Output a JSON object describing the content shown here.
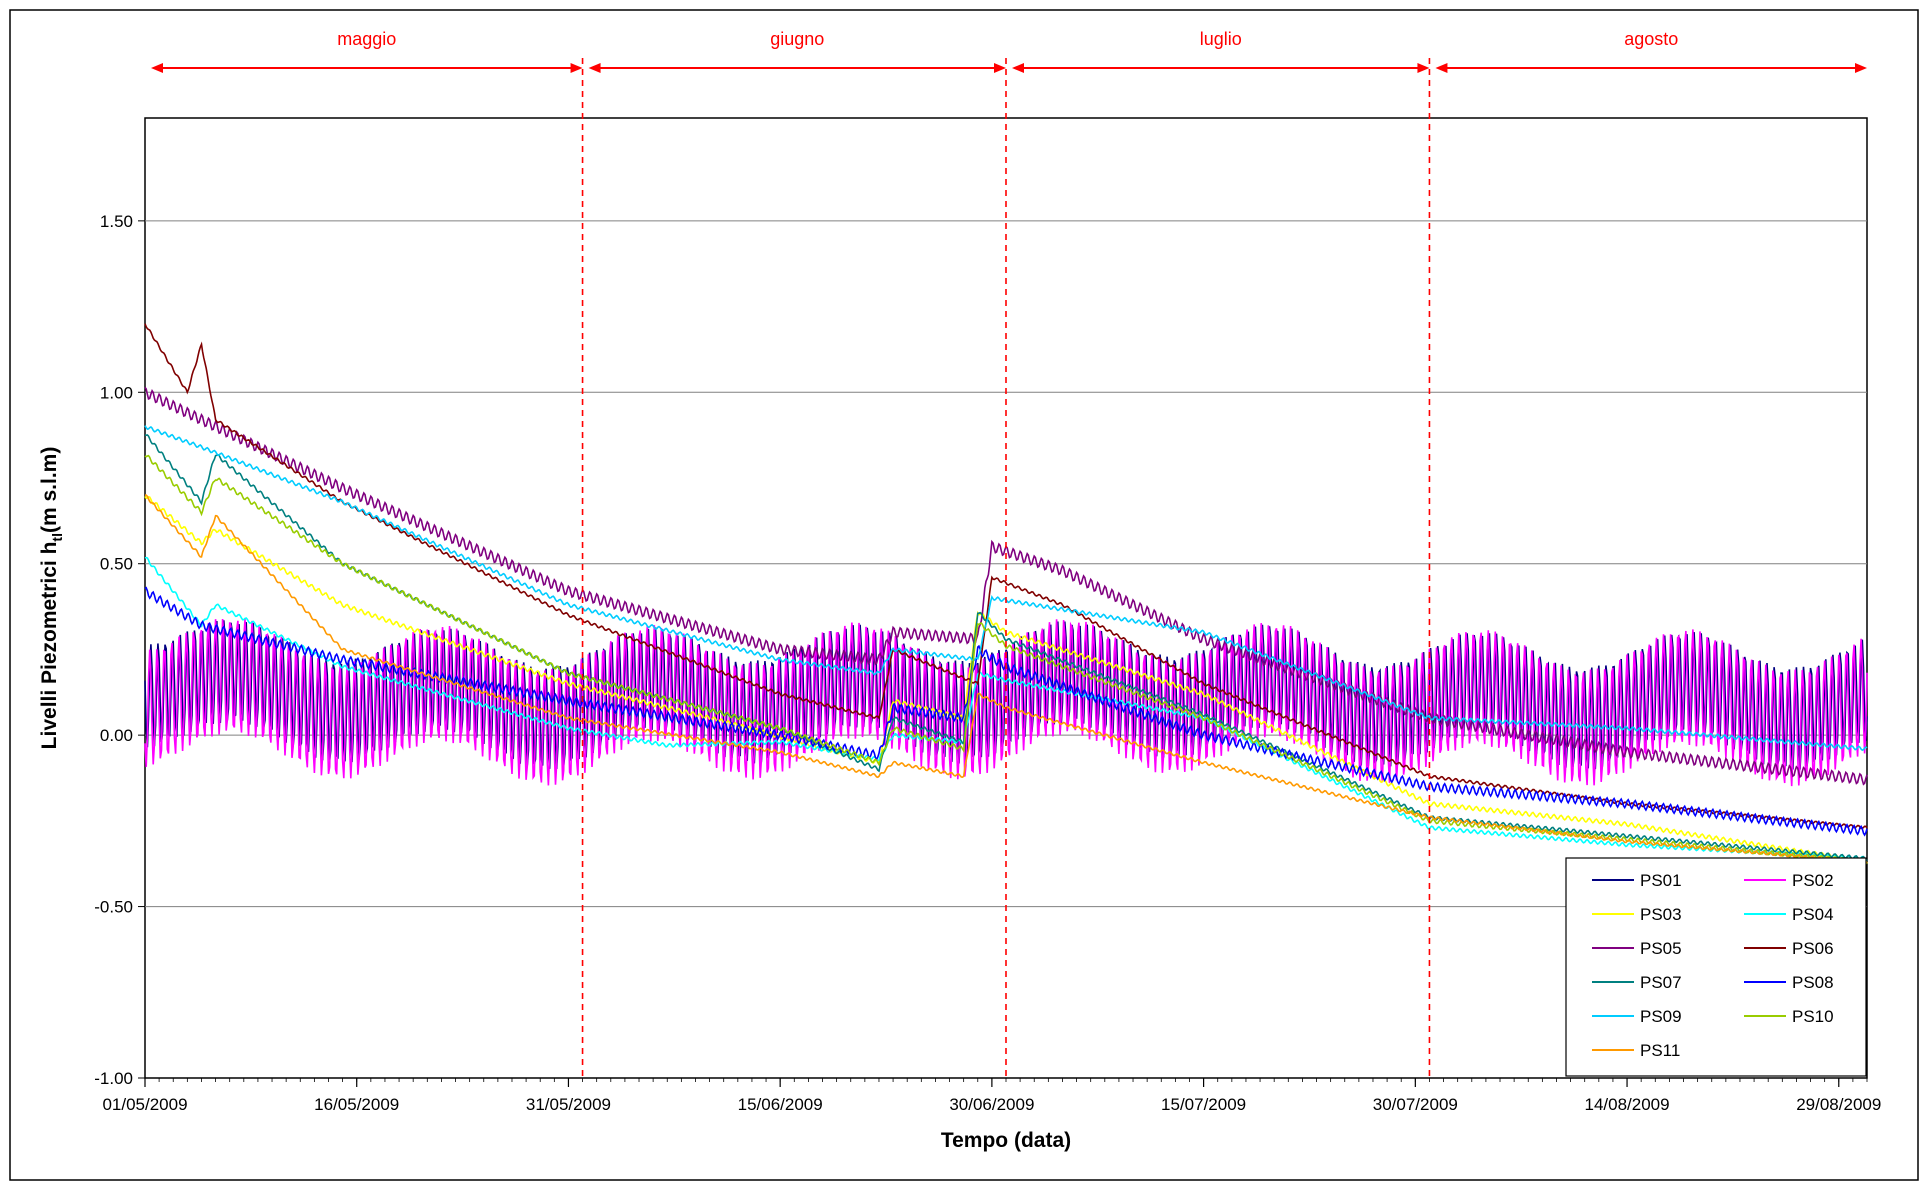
{
  "chart_data": {
    "type": "line",
    "title": "",
    "xlabel": "Tempo (data)",
    "ylabel": "Livelli Piezometrici h tl (m s.l.m)",
    "ylabel_main": "Livelli Piezometrici h",
    "ylabel_sub": "tl",
    "ylabel_unit": "(m s.l.m)",
    "x_start": "01/05/2009",
    "x_end": "31/08/2009",
    "ylim": [
      -1.0,
      1.8
    ],
    "y_ticks": [
      -1.0,
      -0.5,
      0.0,
      0.5,
      1.0,
      1.5
    ],
    "y_tick_labels": [
      "-1.00",
      "-0.50",
      "0.00",
      "0.50",
      "1.00",
      "1.50"
    ],
    "x_ticks": [
      "01/05/2009",
      "16/05/2009",
      "31/05/2009",
      "15/06/2009",
      "30/06/2009",
      "15/07/2009",
      "30/07/2009",
      "14/08/2009",
      "29/08/2009"
    ],
    "grid": "horizontal",
    "legend_position": "bottom-right",
    "months": [
      {
        "label": "maggio",
        "start": "01/05/2009",
        "end": "01/06/2009"
      },
      {
        "label": "giugno",
        "start": "01/06/2009",
        "end": "01/07/2009"
      },
      {
        "label": "luglio",
        "start": "01/07/2009",
        "end": "31/07/2009"
      },
      {
        "label": "agosto",
        "start": "31/07/2009",
        "end": "31/08/2009"
      }
    ],
    "month_boundaries": [
      "01/06/2009",
      "01/07/2009",
      "31/07/2009"
    ],
    "annotation_color": "#ff0000",
    "series": [
      {
        "name": "PS01",
        "color": "#000080",
        "oscillation": 0.15,
        "x": [
          "01/05/2009",
          "05/05/2009",
          "15/05/2009",
          "31/05/2009",
          "10/06/2009",
          "22/06/2009",
          "29/06/2009",
          "10/07/2009",
          "20/07/2009",
          "31/07/2009",
          "14/08/2009",
          "31/08/2009"
        ],
        "y": [
          0.16,
          0.14,
          0.12,
          0.1,
          0.12,
          0.12,
          0.12,
          0.14,
          0.12,
          0.1,
          0.1,
          0.1
        ]
      },
      {
        "name": "PS02",
        "color": "#ff00ff",
        "oscillation": 0.17,
        "x": [
          "01/05/2009",
          "05/05/2009",
          "15/05/2009",
          "31/05/2009",
          "10/06/2009",
          "22/06/2009",
          "29/06/2009",
          "10/07/2009",
          "20/07/2009",
          "31/07/2009",
          "14/08/2009",
          "31/08/2009"
        ],
        "y": [
          0.13,
          0.12,
          0.1,
          0.08,
          0.1,
          0.1,
          0.1,
          0.12,
          0.1,
          0.08,
          0.08,
          0.08
        ]
      },
      {
        "name": "PS03",
        "color": "#ffff00",
        "oscillation": 0.006,
        "x": [
          "01/05/2009",
          "05/05/2009",
          "06/05/2009",
          "15/05/2009",
          "31/05/2009",
          "10/06/2009",
          "22/06/2009",
          "23/06/2009",
          "28/06/2009",
          "29/06/2009",
          "01/07/2009",
          "15/07/2009",
          "31/07/2009",
          "14/08/2009",
          "31/08/2009"
        ],
        "y": [
          0.7,
          0.56,
          0.6,
          0.38,
          0.15,
          0.05,
          -0.08,
          0.1,
          0.05,
          0.36,
          0.3,
          0.12,
          -0.2,
          -0.26,
          -0.37
        ]
      },
      {
        "name": "PS04",
        "color": "#00ffff",
        "oscillation": 0.005,
        "x": [
          "01/05/2009",
          "05/05/2009",
          "06/05/2009",
          "15/05/2009",
          "31/05/2009",
          "07/06/2009",
          "15/06/2009",
          "22/06/2009",
          "23/06/2009",
          "28/06/2009",
          "29/06/2009",
          "01/07/2009",
          "15/07/2009",
          "31/07/2009",
          "14/08/2009",
          "31/08/2009"
        ],
        "y": [
          0.52,
          0.32,
          0.38,
          0.2,
          0.02,
          -0.03,
          -0.02,
          -0.07,
          0.0,
          -0.02,
          0.18,
          0.16,
          0.05,
          -0.27,
          -0.32,
          -0.36
        ]
      },
      {
        "name": "PS05",
        "color": "#800080",
        "oscillation": 0.015,
        "x": [
          "01/05/2009",
          "05/05/2009",
          "15/05/2009",
          "31/05/2009",
          "15/06/2009",
          "22/06/2009",
          "23/06/2009",
          "29/06/2009",
          "30/06/2009",
          "05/07/2009",
          "15/07/2009",
          "31/07/2009",
          "14/08/2009",
          "31/08/2009"
        ],
        "y": [
          1.0,
          0.92,
          0.72,
          0.42,
          0.25,
          0.22,
          0.3,
          0.28,
          0.55,
          0.48,
          0.28,
          0.05,
          -0.05,
          -0.13
        ]
      },
      {
        "name": "PS06",
        "color": "#800000",
        "oscillation": 0.004,
        "x": [
          "01/05/2009",
          "04/05/2009",
          "05/05/2009",
          "06/05/2009",
          "15/05/2009",
          "31/05/2009",
          "15/06/2009",
          "22/06/2009",
          "23/06/2009",
          "29/06/2009",
          "30/06/2009",
          "05/07/2009",
          "15/07/2009",
          "31/07/2009",
          "14/08/2009",
          "31/08/2009"
        ],
        "y": [
          1.2,
          1.0,
          1.14,
          0.92,
          0.68,
          0.35,
          0.12,
          0.05,
          0.25,
          0.15,
          0.46,
          0.38,
          0.15,
          -0.12,
          -0.2,
          -0.27
        ]
      },
      {
        "name": "PS07",
        "color": "#008080",
        "oscillation": 0.005,
        "x": [
          "01/05/2009",
          "05/05/2009",
          "06/05/2009",
          "15/05/2009",
          "31/05/2009",
          "15/06/2009",
          "22/06/2009",
          "23/06/2009",
          "28/06/2009",
          "29/06/2009",
          "01/07/2009",
          "15/07/2009",
          "31/07/2009",
          "31/08/2009"
        ],
        "y": [
          0.88,
          0.68,
          0.82,
          0.5,
          0.18,
          0.02,
          -0.1,
          0.05,
          -0.02,
          0.36,
          0.28,
          0.06,
          -0.24,
          -0.36
        ]
      },
      {
        "name": "PS08",
        "color": "#0000ff",
        "oscillation": 0.012,
        "x": [
          "01/05/2009",
          "05/05/2009",
          "15/05/2009",
          "31/05/2009",
          "15/06/2009",
          "22/06/2009",
          "23/06/2009",
          "28/06/2009",
          "29/06/2009",
          "01/07/2009",
          "15/07/2009",
          "31/07/2009",
          "14/08/2009",
          "31/08/2009"
        ],
        "y": [
          0.42,
          0.32,
          0.22,
          0.1,
          0.0,
          -0.06,
          0.08,
          0.05,
          0.25,
          0.2,
          0.0,
          -0.15,
          -0.2,
          -0.28
        ]
      },
      {
        "name": "PS09",
        "color": "#00ccff",
        "oscillation": 0.005,
        "x": [
          "01/05/2009",
          "05/05/2009",
          "15/05/2009",
          "31/05/2009",
          "15/06/2009",
          "22/06/2009",
          "23/06/2009",
          "29/06/2009",
          "30/06/2009",
          "15/07/2009",
          "31/07/2009",
          "14/08/2009",
          "31/08/2009"
        ],
        "y": [
          0.9,
          0.84,
          0.68,
          0.38,
          0.22,
          0.18,
          0.25,
          0.22,
          0.4,
          0.3,
          0.05,
          0.02,
          -0.04
        ]
      },
      {
        "name": "PS10",
        "color": "#99cc00",
        "oscillation": 0.006,
        "x": [
          "01/05/2009",
          "05/05/2009",
          "06/05/2009",
          "15/05/2009",
          "31/05/2009",
          "15/06/2009",
          "22/06/2009",
          "23/06/2009",
          "28/06/2009",
          "29/06/2009",
          "01/07/2009",
          "15/07/2009",
          "31/07/2009",
          "31/08/2009"
        ],
        "y": [
          0.82,
          0.65,
          0.75,
          0.5,
          0.18,
          0.02,
          -0.08,
          0.02,
          -0.04,
          0.33,
          0.26,
          0.05,
          -0.25,
          -0.37
        ]
      },
      {
        "name": "PS11",
        "color": "#ff9900",
        "oscillation": 0.004,
        "x": [
          "01/05/2009",
          "05/05/2009",
          "06/05/2009",
          "15/05/2009",
          "31/05/2009",
          "15/06/2009",
          "22/06/2009",
          "23/06/2009",
          "28/06/2009",
          "29/06/2009",
          "01/07/2009",
          "15/07/2009",
          "31/07/2009",
          "14/08/2009",
          "31/08/2009"
        ],
        "y": [
          0.7,
          0.52,
          0.64,
          0.25,
          0.05,
          -0.05,
          -0.12,
          -0.08,
          -0.12,
          0.12,
          0.08,
          -0.08,
          -0.24,
          -0.31,
          -0.37
        ]
      }
    ]
  }
}
